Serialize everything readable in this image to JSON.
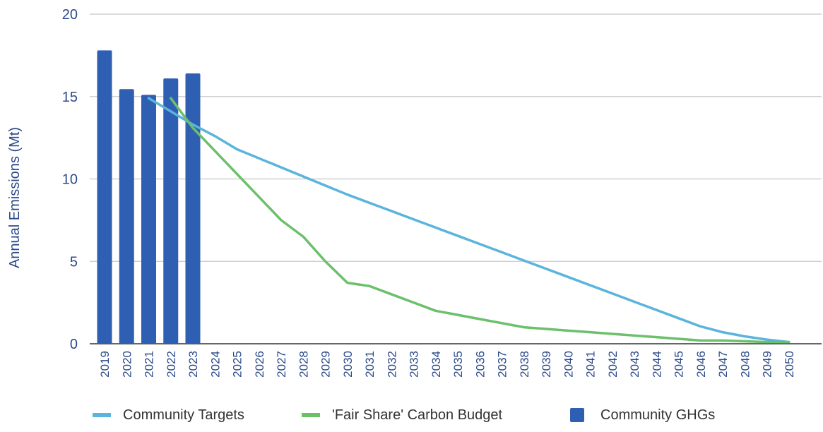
{
  "chart_data": {
    "type": "bar",
    "title": "",
    "xlabel": "",
    "ylabel": "Annual Emissions (Mt)",
    "ylim": [
      0,
      20
    ],
    "yticks": [
      0,
      5,
      10,
      15,
      20
    ],
    "grid": true,
    "legend_position": "bottom",
    "categories": [
      "2019",
      "2020",
      "2021",
      "2022",
      "2023",
      "2024",
      "2025",
      "2026",
      "2027",
      "2028",
      "2029",
      "2030",
      "2031",
      "2032",
      "2033",
      "2034",
      "2035",
      "2036",
      "2037",
      "2038",
      "2039",
      "2040",
      "2041",
      "2042",
      "2043",
      "2044",
      "2045",
      "2046",
      "2047",
      "2048",
      "2049",
      "2050"
    ],
    "series": [
      {
        "name": "Community Targets",
        "type": "line",
        "color": "#5ab4dc",
        "values": [
          null,
          null,
          14.9,
          14.1,
          13.3,
          12.6,
          11.8,
          11.25,
          10.7,
          10.15,
          9.6,
          9.05,
          8.55,
          8.05,
          7.55,
          7.05,
          6.55,
          6.05,
          5.55,
          5.05,
          4.55,
          4.05,
          3.55,
          3.05,
          2.55,
          2.05,
          1.55,
          1.05,
          0.7,
          0.45,
          0.25,
          0.1
        ]
      },
      {
        "name": "'Fair Share' Carbon Budget",
        "type": "line",
        "color": "#6cc06c",
        "values": [
          null,
          null,
          null,
          14.9,
          13.1,
          11.7,
          10.3,
          8.9,
          7.5,
          6.5,
          5.0,
          3.7,
          3.5,
          3.0,
          2.5,
          2.0,
          1.75,
          1.5,
          1.25,
          1.0,
          0.9,
          0.8,
          0.7,
          0.6,
          0.5,
          0.4,
          0.3,
          0.2,
          0.2,
          0.15,
          0.1,
          0.1
        ]
      },
      {
        "name": "Community GHGs",
        "type": "bar",
        "color": "#2e5fb3",
        "values": [
          17.8,
          15.45,
          15.1,
          16.1,
          16.4,
          null,
          null,
          null,
          null,
          null,
          null,
          null,
          null,
          null,
          null,
          null,
          null,
          null,
          null,
          null,
          null,
          null,
          null,
          null,
          null,
          null,
          null,
          null,
          null,
          null,
          null,
          null
        ]
      }
    ],
    "colors": {
      "axis_text": "#2b4a8a",
      "grid": "#c8c8c8"
    }
  }
}
